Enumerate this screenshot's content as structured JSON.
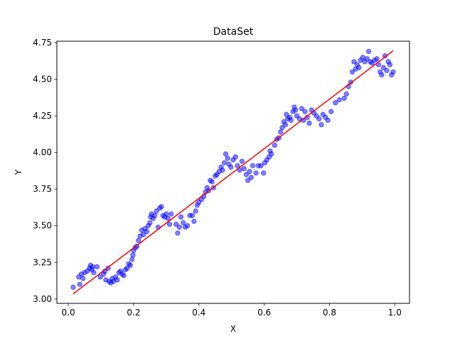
{
  "chart_data": {
    "type": "scatter",
    "title": "DataSet",
    "xlabel": "X",
    "ylabel": "Y",
    "xlim": [
      -0.035,
      1.045
    ],
    "ylim": [
      2.97,
      4.76
    ],
    "xticks": [
      0.0,
      0.2,
      0.4,
      0.6,
      0.8,
      1.0
    ],
    "xtick_labels": [
      "0.0",
      "0.2",
      "0.4",
      "0.6",
      "0.8",
      "1.0"
    ],
    "yticks": [
      3.0,
      3.25,
      3.5,
      3.75,
      4.0,
      4.25,
      4.5,
      4.75
    ],
    "ytick_labels": [
      "3.00",
      "3.25",
      "3.50",
      "3.75",
      "4.00",
      "4.25",
      "4.50",
      "4.75"
    ],
    "grid": false,
    "scatter_color": "#0000ff",
    "scatter_opacity": 0.5,
    "line_color": "#ff0000",
    "series": [
      {
        "type": "scatter",
        "points": [
          [
            0.015,
            3.08
          ],
          [
            0.032,
            3.15
          ],
          [
            0.035,
            3.1
          ],
          [
            0.04,
            3.17
          ],
          [
            0.045,
            3.14
          ],
          [
            0.05,
            3.18
          ],
          [
            0.058,
            3.19
          ],
          [
            0.065,
            3.21
          ],
          [
            0.068,
            3.23
          ],
          [
            0.072,
            3.2
          ],
          [
            0.075,
            3.22
          ],
          [
            0.078,
            3.18
          ],
          [
            0.088,
            3.22
          ],
          [
            0.098,
            3.15
          ],
          [
            0.108,
            3.17
          ],
          [
            0.112,
            3.19
          ],
          [
            0.115,
            3.13
          ],
          [
            0.122,
            3.21
          ],
          [
            0.125,
            3.12
          ],
          [
            0.13,
            3.11
          ],
          [
            0.135,
            3.14
          ],
          [
            0.138,
            3.12
          ],
          [
            0.145,
            3.15
          ],
          [
            0.15,
            3.13
          ],
          [
            0.155,
            3.18
          ],
          [
            0.16,
            3.19
          ],
          [
            0.165,
            3.17
          ],
          [
            0.17,
            3.16
          ],
          [
            0.175,
            3.2
          ],
          [
            0.18,
            3.21
          ],
          [
            0.185,
            3.24
          ],
          [
            0.19,
            3.23
          ],
          [
            0.195,
            3.27
          ],
          [
            0.198,
            3.3
          ],
          [
            0.2,
            3.33
          ],
          [
            0.205,
            3.35
          ],
          [
            0.21,
            3.36
          ],
          [
            0.215,
            3.4
          ],
          [
            0.22,
            3.43
          ],
          [
            0.225,
            3.47
          ],
          [
            0.23,
            3.44
          ],
          [
            0.235,
            3.48
          ],
          [
            0.24,
            3.46
          ],
          [
            0.245,
            3.5
          ],
          [
            0.25,
            3.52
          ],
          [
            0.252,
            3.56
          ],
          [
            0.255,
            3.58
          ],
          [
            0.26,
            3.55
          ],
          [
            0.265,
            3.57
          ],
          [
            0.27,
            3.6
          ],
          [
            0.275,
            3.49
          ],
          [
            0.28,
            3.62
          ],
          [
            0.285,
            3.63
          ],
          [
            0.29,
            3.57
          ],
          [
            0.295,
            3.56
          ],
          [
            0.3,
            3.58
          ],
          [
            0.305,
            3.55
          ],
          [
            0.31,
            3.51
          ],
          [
            0.315,
            3.58
          ],
          [
            0.33,
            3.51
          ],
          [
            0.335,
            3.45
          ],
          [
            0.34,
            3.49
          ],
          [
            0.345,
            3.56
          ],
          [
            0.352,
            3.52
          ],
          [
            0.358,
            3.49
          ],
          [
            0.365,
            3.5
          ],
          [
            0.372,
            3.57
          ],
          [
            0.38,
            3.57
          ],
          [
            0.385,
            3.53
          ],
          [
            0.39,
            3.6
          ],
          [
            0.395,
            3.64
          ],
          [
            0.4,
            3.66
          ],
          [
            0.408,
            3.68
          ],
          [
            0.415,
            3.7
          ],
          [
            0.42,
            3.73
          ],
          [
            0.425,
            3.76
          ],
          [
            0.43,
            3.74
          ],
          [
            0.435,
            3.81
          ],
          [
            0.44,
            3.8
          ],
          [
            0.445,
            3.76
          ],
          [
            0.45,
            3.84
          ],
          [
            0.455,
            3.85
          ],
          [
            0.462,
            3.87
          ],
          [
            0.468,
            3.9
          ],
          [
            0.472,
            3.88
          ],
          [
            0.478,
            3.93
          ],
          [
            0.482,
            3.99
          ],
          [
            0.488,
            3.96
          ],
          [
            0.492,
            3.92
          ],
          [
            0.498,
            3.9
          ],
          [
            0.505,
            3.95
          ],
          [
            0.512,
            3.97
          ],
          [
            0.518,
            3.91
          ],
          [
            0.525,
            3.88
          ],
          [
            0.532,
            3.94
          ],
          [
            0.538,
            3.89
          ],
          [
            0.545,
            3.85
          ],
          [
            0.55,
            3.81
          ],
          [
            0.555,
            3.87
          ],
          [
            0.56,
            3.83
          ],
          [
            0.565,
            3.91
          ],
          [
            0.575,
            3.86
          ],
          [
            0.582,
            3.91
          ],
          [
            0.59,
            3.91
          ],
          [
            0.598,
            3.86
          ],
          [
            0.602,
            3.93
          ],
          [
            0.608,
            3.95
          ],
          [
            0.615,
            3.97
          ],
          [
            0.618,
            4.01
          ],
          [
            0.622,
            3.99
          ],
          [
            0.632,
            4.05
          ],
          [
            0.638,
            4.09
          ],
          [
            0.645,
            4.1
          ],
          [
            0.65,
            4.14
          ],
          [
            0.655,
            4.17
          ],
          [
            0.66,
            4.21
          ],
          [
            0.665,
            4.19
          ],
          [
            0.668,
            4.26
          ],
          [
            0.672,
            4.23
          ],
          [
            0.678,
            4.24
          ],
          [
            0.682,
            4.22
          ],
          [
            0.688,
            4.28
          ],
          [
            0.692,
            4.31
          ],
          [
            0.696,
            4.29
          ],
          [
            0.7,
            4.25
          ],
          [
            0.708,
            4.23
          ],
          [
            0.715,
            4.3
          ],
          [
            0.72,
            4.22
          ],
          [
            0.725,
            4.28
          ],
          [
            0.732,
            4.24
          ],
          [
            0.738,
            4.2
          ],
          [
            0.745,
            4.29
          ],
          [
            0.752,
            4.27
          ],
          [
            0.76,
            4.25
          ],
          [
            0.768,
            4.23
          ],
          [
            0.775,
            4.19
          ],
          [
            0.78,
            4.26
          ],
          [
            0.788,
            4.24
          ],
          [
            0.795,
            4.22
          ],
          [
            0.805,
            4.28
          ],
          [
            0.818,
            4.34
          ],
          [
            0.83,
            4.36
          ],
          [
            0.845,
            4.37
          ],
          [
            0.852,
            4.4
          ],
          [
            0.858,
            4.45
          ],
          [
            0.865,
            4.48
          ],
          [
            0.87,
            4.55
          ],
          [
            0.875,
            4.62
          ],
          [
            0.88,
            4.57
          ],
          [
            0.885,
            4.6
          ],
          [
            0.89,
            4.58
          ],
          [
            0.895,
            4.63
          ],
          [
            0.902,
            4.65
          ],
          [
            0.908,
            4.62
          ],
          [
            0.915,
            4.64
          ],
          [
            0.92,
            4.69
          ],
          [
            0.925,
            4.62
          ],
          [
            0.93,
            4.61
          ],
          [
            0.938,
            4.63
          ],
          [
            0.945,
            4.64
          ],
          [
            0.95,
            4.6
          ],
          [
            0.955,
            4.55
          ],
          [
            0.96,
            4.53
          ],
          [
            0.965,
            4.58
          ],
          [
            0.97,
            4.66
          ],
          [
            0.975,
            4.56
          ],
          [
            0.98,
            4.62
          ],
          [
            0.985,
            4.6
          ],
          [
            0.99,
            4.53
          ],
          [
            0.995,
            4.55
          ]
        ]
      },
      {
        "type": "line",
        "points": [
          [
            0.015,
            3.035
          ],
          [
            0.995,
            4.695
          ]
        ]
      }
    ]
  }
}
